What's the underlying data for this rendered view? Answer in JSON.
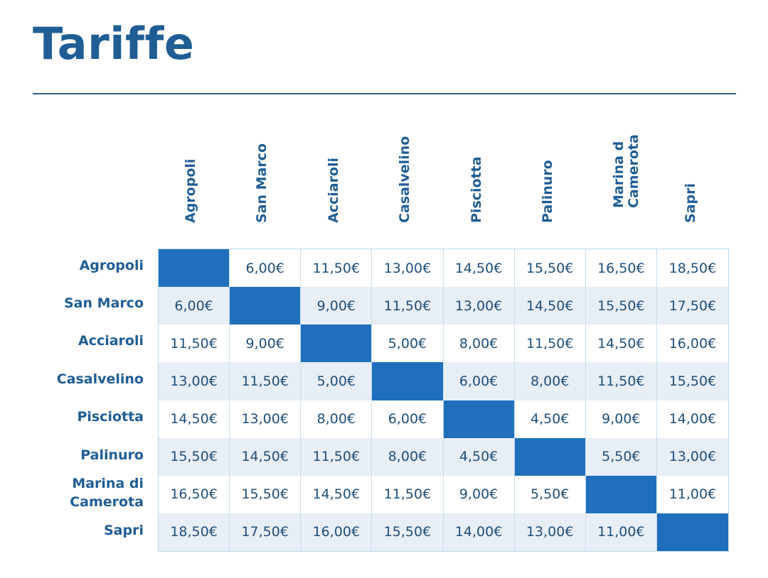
{
  "title": "Tariffe",
  "columns": [
    "Agropoli",
    "San Marco",
    "Acciaroli",
    "Casalvelino",
    "Pisciotta",
    "Palinuro",
    "Marina d\nCamerota",
    "Sapri"
  ],
  "rows": [
    {
      "label": "Agropoli",
      "values": [
        "",
        "6,00€",
        "11,50€",
        "13,00€",
        "14,50€",
        "15,50€",
        "16,50€",
        "18,50€"
      ]
    },
    {
      "label": "San Marco",
      "values": [
        "6,00€",
        "",
        "9,00€",
        "11,50€",
        "13,00€",
        "14,50€",
        "15,50€",
        "17,50€"
      ]
    },
    {
      "label": "Acciaroli",
      "values": [
        "11,50€",
        "9,00€",
        "",
        "5,00€",
        "8,00€",
        "11,50€",
        "14,50€",
        "16,00€"
      ]
    },
    {
      "label": "Casalvelino",
      "values": [
        "13,00€",
        "11,50€",
        "5,00€",
        "",
        "6,00€",
        "8,00€",
        "11,50€",
        "15,50€"
      ]
    },
    {
      "label": "Pisciotta",
      "values": [
        "14,50€",
        "13,00€",
        "8,00€",
        "6,00€",
        "",
        "4,50€",
        "9,00€",
        "14,00€"
      ]
    },
    {
      "label": "Palinuro",
      "values": [
        "15,50€",
        "14,50€",
        "11,50€",
        "8,00€",
        "4,50€",
        "",
        "5,50€",
        "13,00€"
      ]
    },
    {
      "label": "Marina di\nCamerota",
      "values": [
        "16,50€",
        "15,50€",
        "14,50€",
        "11,50€",
        "9,00€",
        "5,50€",
        "",
        "11,00€"
      ]
    },
    {
      "label": "Sapri",
      "values": [
        "18,50€",
        "17,50€",
        "16,00€",
        "15,50€",
        "14,00€",
        "13,00€",
        "11,00€",
        ""
      ]
    }
  ],
  "colors": {
    "title": "#205d94",
    "diagonal": "#1f6fbc",
    "row_shade": "#e8eef6",
    "cell_text": "#1f4f7a"
  }
}
